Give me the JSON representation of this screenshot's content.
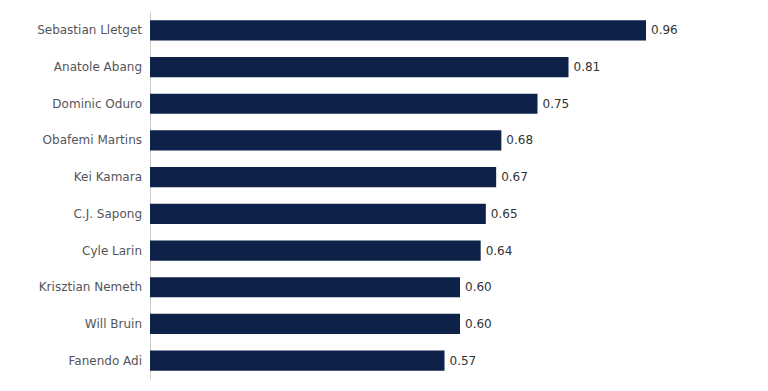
{
  "chart_data": {
    "type": "bar",
    "orientation": "horizontal",
    "categories": [
      "Fanendo Adi",
      "Will Bruin",
      "Krisztian Nemeth",
      "Cyle Larin",
      "C.J. Sapong",
      "Kei Kamara",
      "Obafemi Martins",
      "Dominic Oduro",
      "Anatole Abang",
      "Sebastian Lletget"
    ],
    "values": [
      0.57,
      0.6,
      0.6,
      0.64,
      0.65,
      0.67,
      0.68,
      0.75,
      0.81,
      0.96
    ],
    "value_labels": [
      "0.57",
      "0.60",
      "0.60",
      "0.64",
      "0.65",
      "0.67",
      "0.68",
      "0.75",
      "0.81",
      "0.96"
    ],
    "data_labels": true,
    "color": "#0d2149",
    "xlim": [
      0,
      1.08
    ],
    "tick_labels": "y",
    "grid": false
  }
}
